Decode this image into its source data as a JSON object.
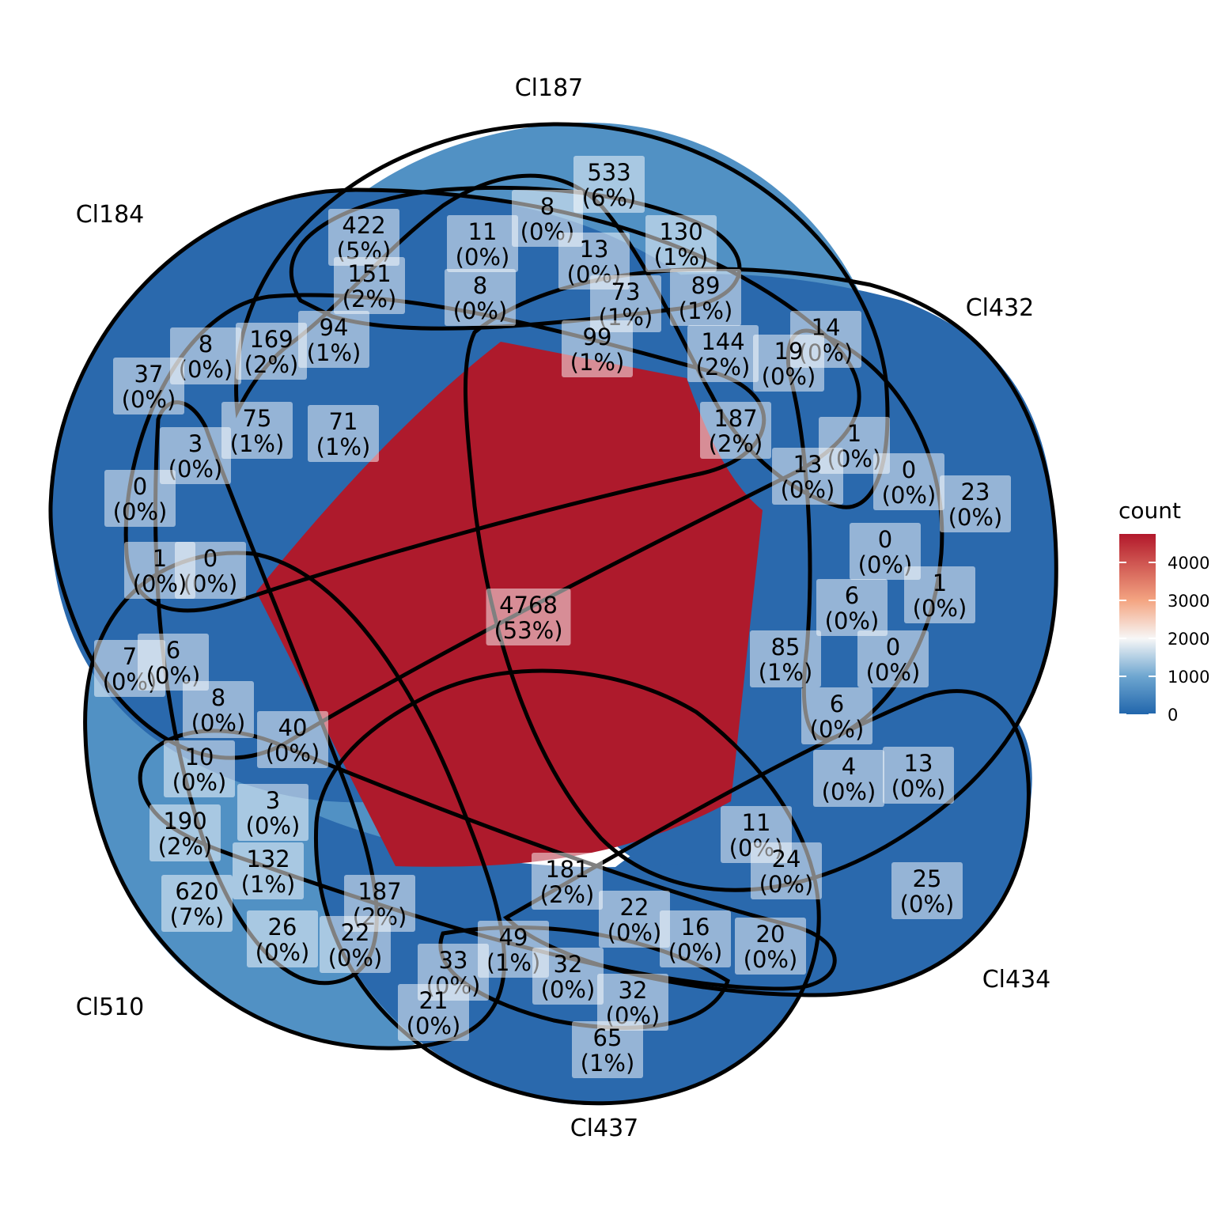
{
  "sets": [
    "Cl187",
    "Cl184",
    "Cl432",
    "Cl510",
    "Cl434",
    "Cl437"
  ],
  "colors": {
    "count_0": "#2166ac",
    "count_1000": "#6ea6d0",
    "count_2000": "#f7f7f7",
    "count_3000": "#f4a582",
    "count_4768": "#b2182b",
    "outline": "#000000",
    "label_box": "#ffffff"
  },
  "legend": {
    "title": "count",
    "ticks": [
      "0",
      "1000",
      "2000",
      "3000",
      "4000"
    ],
    "max": 4768
  },
  "chart_data": {
    "type": "venn",
    "total_sets": 6,
    "region_labels": [
      {
        "count": "4768",
        "pct": "(53%)"
      },
      {
        "count": "533",
        "pct": "(6%)"
      },
      {
        "count": "422",
        "pct": "(5%)"
      },
      {
        "count": "8",
        "pct": "(0%)"
      },
      {
        "count": "11",
        "pct": "(0%)"
      },
      {
        "count": "130",
        "pct": "(1%)"
      },
      {
        "count": "13",
        "pct": "(0%)"
      },
      {
        "count": "151",
        "pct": "(2%)"
      },
      {
        "count": "8",
        "pct": "(0%)"
      },
      {
        "count": "89",
        "pct": "(1%)"
      },
      {
        "count": "73",
        "pct": "(1%)"
      },
      {
        "count": "14",
        "pct": "(0%)"
      },
      {
        "count": "94",
        "pct": "(1%)"
      },
      {
        "count": "99",
        "pct": "(1%)"
      },
      {
        "count": "169",
        "pct": "(2%)"
      },
      {
        "count": "8",
        "pct": "(0%)"
      },
      {
        "count": "144",
        "pct": "(2%)"
      },
      {
        "count": "19",
        "pct": "(0%)"
      },
      {
        "count": "37",
        "pct": "(0%)"
      },
      {
        "count": "75",
        "pct": "(1%)"
      },
      {
        "count": "71",
        "pct": "(1%)"
      },
      {
        "count": "187",
        "pct": "(2%)"
      },
      {
        "count": "1",
        "pct": "(0%)"
      },
      {
        "count": "3",
        "pct": "(0%)"
      },
      {
        "count": "13",
        "pct": "(0%)"
      },
      {
        "count": "0",
        "pct": "(0%)"
      },
      {
        "count": "23",
        "pct": "(0%)"
      },
      {
        "count": "0",
        "pct": "(0%)"
      },
      {
        "count": "0",
        "pct": "(0%)"
      },
      {
        "count": "1",
        "pct": "(0%)"
      },
      {
        "count": "6",
        "pct": "(0%)"
      },
      {
        "count": "0",
        "pct": "(0%)"
      },
      {
        "count": "1",
        "pct": "(0%)"
      },
      {
        "count": "85",
        "pct": "(1%)"
      },
      {
        "count": "0",
        "pct": "(0%)"
      },
      {
        "count": "7",
        "pct": "(0%)"
      },
      {
        "count": "6",
        "pct": "(0%)"
      },
      {
        "count": "6",
        "pct": "(0%)"
      },
      {
        "count": "8",
        "pct": "(0%)"
      },
      {
        "count": "40",
        "pct": "(0%)"
      },
      {
        "count": "4",
        "pct": "(0%)"
      },
      {
        "count": "13",
        "pct": "(0%)"
      },
      {
        "count": "10",
        "pct": "(0%)"
      },
      {
        "count": "3",
        "pct": "(0%)"
      },
      {
        "count": "11",
        "pct": "(0%)"
      },
      {
        "count": "190",
        "pct": "(2%)"
      },
      {
        "count": "24",
        "pct": "(0%)"
      },
      {
        "count": "181",
        "pct": "(2%)"
      },
      {
        "count": "132",
        "pct": "(1%)"
      },
      {
        "count": "25",
        "pct": "(0%)"
      },
      {
        "count": "620",
        "pct": "(7%)"
      },
      {
        "count": "187",
        "pct": "(2%)"
      },
      {
        "count": "22",
        "pct": "(0%)"
      },
      {
        "count": "16",
        "pct": "(0%)"
      },
      {
        "count": "26",
        "pct": "(0%)"
      },
      {
        "count": "22",
        "pct": "(0%)"
      },
      {
        "count": "49",
        "pct": "(1%)"
      },
      {
        "count": "20",
        "pct": "(0%)"
      },
      {
        "count": "33",
        "pct": "(0%)"
      },
      {
        "count": "32",
        "pct": "(0%)"
      },
      {
        "count": "32",
        "pct": "(0%)"
      },
      {
        "count": "21",
        "pct": "(0%)"
      },
      {
        "count": "65",
        "pct": "(1%)"
      }
    ]
  }
}
